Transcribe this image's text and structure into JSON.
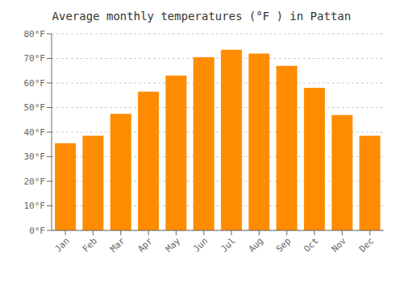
{
  "chart_data": {
    "type": "bar",
    "title": "Average monthly temperatures (°F ) in Pattan",
    "categories": [
      "Jan",
      "Feb",
      "Mar",
      "Apr",
      "May",
      "Jun",
      "Jul",
      "Aug",
      "Sep",
      "Oct",
      "Nov",
      "Dec"
    ],
    "values": [
      35.5,
      38.5,
      47.5,
      56.5,
      63.0,
      70.5,
      73.5,
      72.0,
      67.0,
      58.0,
      47.0,
      38.5
    ],
    "color": "#FF8C00",
    "ylim": [
      0,
      80
    ],
    "yticks": [
      {
        "value": 0,
        "label": "0°F"
      },
      {
        "value": 10,
        "label": "10°F"
      },
      {
        "value": 20,
        "label": "20°F"
      },
      {
        "value": 30,
        "label": "30°F"
      },
      {
        "value": 40,
        "label": "40°F"
      },
      {
        "value": 50,
        "label": "50°F"
      },
      {
        "value": 60,
        "label": "60°F"
      },
      {
        "value": 70,
        "label": "70°F"
      },
      {
        "value": 80,
        "label": "80°F"
      }
    ],
    "grid": true
  }
}
